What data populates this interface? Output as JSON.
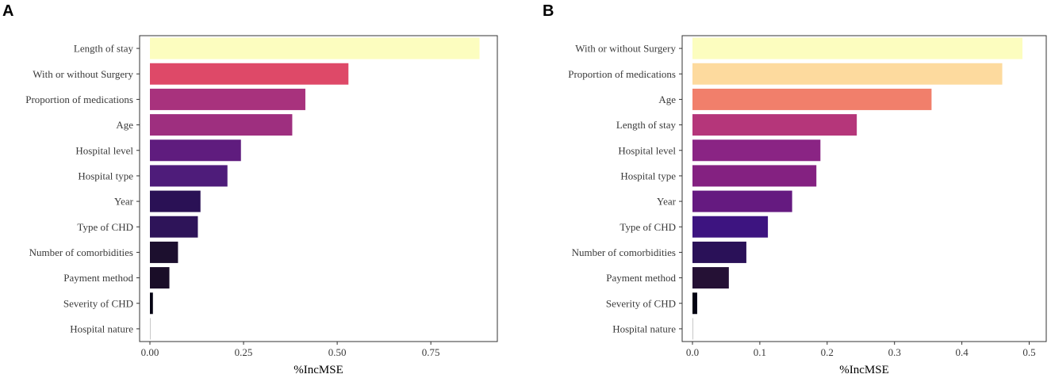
{
  "chart_data": [
    {
      "panel": "A",
      "type": "bar",
      "orientation": "horizontal",
      "xlabel": "%IncMSE",
      "ylabel": "",
      "xlim": [
        0,
        0.9
      ],
      "xticks": [
        0,
        0.25,
        0.5,
        0.75
      ],
      "xtick_labels": [
        "0.00",
        "0.25",
        "0.50",
        "0.75"
      ],
      "grid": false,
      "categories": [
        "Length of stay",
        "With or without Surgery",
        "Proportion of medications",
        "Age",
        "Hospital level",
        "Hospital type",
        "Year",
        "Type of CHD",
        "Number of comorbidities",
        "Payment method",
        "Severity of CHD",
        "Hospital nature"
      ],
      "values": [
        0.88,
        0.53,
        0.415,
        0.38,
        0.243,
        0.207,
        0.135,
        0.128,
        0.075,
        0.052,
        0.008,
        0.002
      ],
      "colors": [
        "#FCFDBF",
        "#DE4968",
        "#A8327D",
        "#9E2F7F",
        "#5F1C7E",
        "#4E1C7A",
        "#2A1155",
        "#2E1459",
        "#1C0F2E",
        "#1A0D28",
        "#060414",
        "#C8C8C8"
      ]
    },
    {
      "panel": "B",
      "type": "bar",
      "orientation": "horizontal",
      "xlabel": "%IncMSE",
      "ylabel": "",
      "xlim": [
        0,
        0.51
      ],
      "xticks": [
        0,
        0.1,
        0.2,
        0.3,
        0.4,
        0.5
      ],
      "xtick_labels": [
        "0.0",
        "0.1",
        "0.2",
        "0.3",
        "0.4",
        "0.5"
      ],
      "grid": false,
      "categories": [
        "With or without Surgery",
        "Proportion of medications",
        "Age",
        "Length of stay",
        "Hospital level",
        "Hospital type",
        "Year",
        "Type of CHD",
        "Number of comorbidities",
        "Payment method",
        "Severity of CHD",
        "Hospital nature"
      ],
      "values": [
        0.49,
        0.46,
        0.355,
        0.244,
        0.19,
        0.184,
        0.148,
        0.112,
        0.08,
        0.054,
        0.007,
        0.001
      ],
      "colors": [
        "#FCFDBF",
        "#FDDA9E",
        "#F17F6B",
        "#B5367A",
        "#8A2484",
        "#842181",
        "#651A80",
        "#3D1480",
        "#2A1158",
        "#251135",
        "#030312",
        "#C8C8C8"
      ]
    }
  ]
}
